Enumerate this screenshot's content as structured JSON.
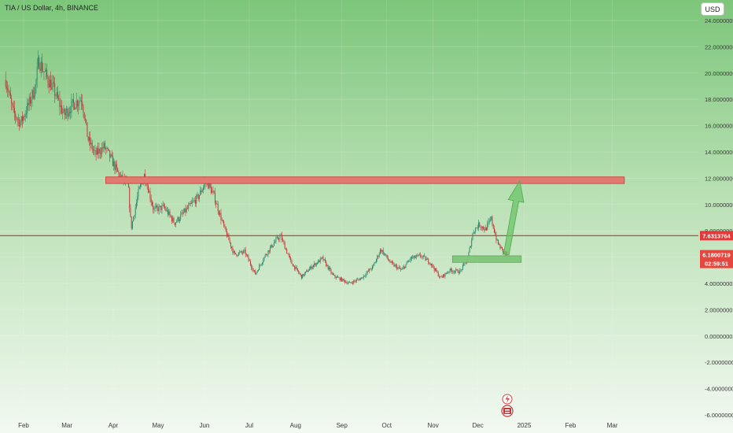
{
  "header": {
    "ticker": "TIA / US Dollar, 4h, BINANCE",
    "currency": "USD"
  },
  "chart_data": {
    "type": "candlestick",
    "y_ticks": [
      "24.0000000",
      "22.0000000",
      "20.0000000",
      "18.0000000",
      "16.0000000",
      "14.0000000",
      "12.0000000",
      "10.0000000",
      "8.0000000",
      "6.0000000",
      "4.0000000",
      "2.0000000",
      "0.0000000",
      "-2.0000000",
      "-4.0000000",
      "-6.0000000"
    ],
    "ylim": [
      -6,
      24
    ],
    "x_ticks": [
      "Feb",
      "Mar",
      "Apr",
      "May",
      "Jun",
      "Jul",
      "Aug",
      "Sep",
      "Oct",
      "Nov",
      "Dec",
      "2025",
      "Feb",
      "Mar"
    ],
    "price_path": [
      {
        "date": "2024-01-20",
        "price": 19.5
      },
      {
        "date": "2024-01-25",
        "price": 17.0
      },
      {
        "date": "2024-01-30",
        "price": 16.2
      },
      {
        "date": "2024-02-04",
        "price": 17.5
      },
      {
        "date": "2024-02-09",
        "price": 19.0
      },
      {
        "date": "2024-02-11",
        "price": 21.0
      },
      {
        "date": "2024-02-16",
        "price": 19.8
      },
      {
        "date": "2024-02-21",
        "price": 18.8
      },
      {
        "date": "2024-02-28",
        "price": 16.8
      },
      {
        "date": "2024-03-05",
        "price": 17.6
      },
      {
        "date": "2024-03-11",
        "price": 18.1
      },
      {
        "date": "2024-03-15",
        "price": 15.0
      },
      {
        "date": "2024-03-20",
        "price": 13.8
      },
      {
        "date": "2024-03-26",
        "price": 14.4
      },
      {
        "date": "2024-03-30",
        "price": 13.6
      },
      {
        "date": "2024-04-05",
        "price": 12.2
      },
      {
        "date": "2024-04-11",
        "price": 11.4
      },
      {
        "date": "2024-04-13",
        "price": 8.2
      },
      {
        "date": "2024-04-18",
        "price": 11.0
      },
      {
        "date": "2024-04-22",
        "price": 12.3
      },
      {
        "date": "2024-04-28",
        "price": 9.6
      },
      {
        "date": "2024-05-05",
        "price": 9.8
      },
      {
        "date": "2024-05-12",
        "price": 8.6
      },
      {
        "date": "2024-05-20",
        "price": 9.6
      },
      {
        "date": "2024-05-28",
        "price": 10.6
      },
      {
        "date": "2024-06-02",
        "price": 11.8
      },
      {
        "date": "2024-06-07",
        "price": 10.8
      },
      {
        "date": "2024-06-14",
        "price": 8.3
      },
      {
        "date": "2024-06-21",
        "price": 6.2
      },
      {
        "date": "2024-06-28",
        "price": 6.4
      },
      {
        "date": "2024-07-05",
        "price": 4.7
      },
      {
        "date": "2024-07-12",
        "price": 6.2
      },
      {
        "date": "2024-07-19",
        "price": 7.3
      },
      {
        "date": "2024-07-22",
        "price": 7.6
      },
      {
        "date": "2024-07-29",
        "price": 5.6
      },
      {
        "date": "2024-08-05",
        "price": 4.5
      },
      {
        "date": "2024-08-12",
        "price": 5.3
      },
      {
        "date": "2024-08-19",
        "price": 5.9
      },
      {
        "date": "2024-08-26",
        "price": 4.6
      },
      {
        "date": "2024-09-06",
        "price": 4.0
      },
      {
        "date": "2024-09-14",
        "price": 4.4
      },
      {
        "date": "2024-09-22",
        "price": 5.3
      },
      {
        "date": "2024-09-27",
        "price": 6.6
      },
      {
        "date": "2024-10-04",
        "price": 5.5
      },
      {
        "date": "2024-10-11",
        "price": 5.0
      },
      {
        "date": "2024-10-17",
        "price": 5.9
      },
      {
        "date": "2024-10-24",
        "price": 6.1
      },
      {
        "date": "2024-10-30",
        "price": 5.6
      },
      {
        "date": "2024-11-06",
        "price": 4.4
      },
      {
        "date": "2024-11-12",
        "price": 5.0
      },
      {
        "date": "2024-11-19",
        "price": 4.9
      },
      {
        "date": "2024-11-24",
        "price": 5.8
      },
      {
        "date": "2024-11-28",
        "price": 8.0
      },
      {
        "date": "2024-12-02",
        "price": 8.5
      },
      {
        "date": "2024-12-06",
        "price": 8.1
      },
      {
        "date": "2024-12-10",
        "price": 8.9
      },
      {
        "date": "2024-12-14",
        "price": 7.1
      },
      {
        "date": "2024-12-18",
        "price": 6.4
      },
      {
        "date": "2024-12-21",
        "price": 6.18
      }
    ],
    "current_price": "6.1800719",
    "countdown": "02:59:51",
    "horizontal_line": {
      "price": 7.6313764,
      "label": "7.6313764",
      "color": "#e03a3a"
    },
    "resistance_zone": {
      "from": "2024-03-27",
      "to": "2025-03-09",
      "low": 11.6,
      "high": 12.1,
      "color": "#e07b72"
    },
    "support_zone": {
      "from": "2024-11-14",
      "to": "2024-12-30",
      "low": 5.6,
      "high": 6.1,
      "color": "#7fc67a"
    },
    "projection_arrow": {
      "from_date": "2024-12-20",
      "from_price": 6.2,
      "to_date": "2024-12-29",
      "to_price": 11.8,
      "color": "#6cc46a"
    },
    "colors": {
      "up": "#2d8a6e",
      "down": "#c0393b",
      "bg_top": "#7cc67a",
      "bg_bottom": "#f2f9f1"
    }
  }
}
